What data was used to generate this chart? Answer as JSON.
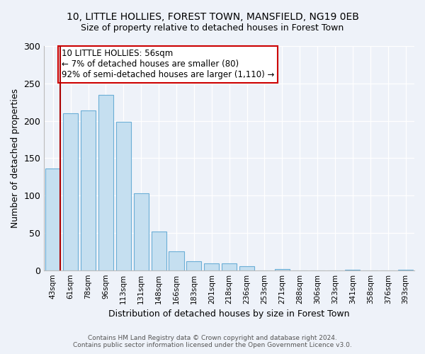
{
  "title": "10, LITTLE HOLLIES, FOREST TOWN, MANSFIELD, NG19 0EB",
  "subtitle": "Size of property relative to detached houses in Forest Town",
  "xlabel": "Distribution of detached houses by size in Forest Town",
  "ylabel": "Number of detached properties",
  "bar_labels": [
    "43sqm",
    "61sqm",
    "78sqm",
    "96sqm",
    "113sqm",
    "131sqm",
    "148sqm",
    "166sqm",
    "183sqm",
    "201sqm",
    "218sqm",
    "236sqm",
    "253sqm",
    "271sqm",
    "288sqm",
    "306sqm",
    "323sqm",
    "341sqm",
    "358sqm",
    "376sqm",
    "393sqm"
  ],
  "bar_values": [
    136,
    210,
    214,
    235,
    199,
    103,
    52,
    25,
    12,
    9,
    9,
    5,
    0,
    2,
    0,
    0,
    0,
    1,
    0,
    0,
    1
  ],
  "annotation_line1": "10 LITTLE HOLLIES: 56sqm",
  "annotation_line2": "← 7% of detached houses are smaller (80)",
  "annotation_line3": "92% of semi-detached houses are larger (1,110) →",
  "bar_color": "#c5dff0",
  "bar_edge_color": "#6baed6",
  "marker_line_color": "#aa0000",
  "annotation_box_facecolor": "#ffffff",
  "annotation_box_edgecolor": "#cc0000",
  "footer_line1": "Contains HM Land Registry data © Crown copyright and database right 2024.",
  "footer_line2": "Contains public sector information licensed under the Open Government Licence v3.0.",
  "ylim": [
    0,
    300
  ],
  "yticks": [
    0,
    50,
    100,
    150,
    200,
    250,
    300
  ],
  "background_color": "#eef2f9"
}
